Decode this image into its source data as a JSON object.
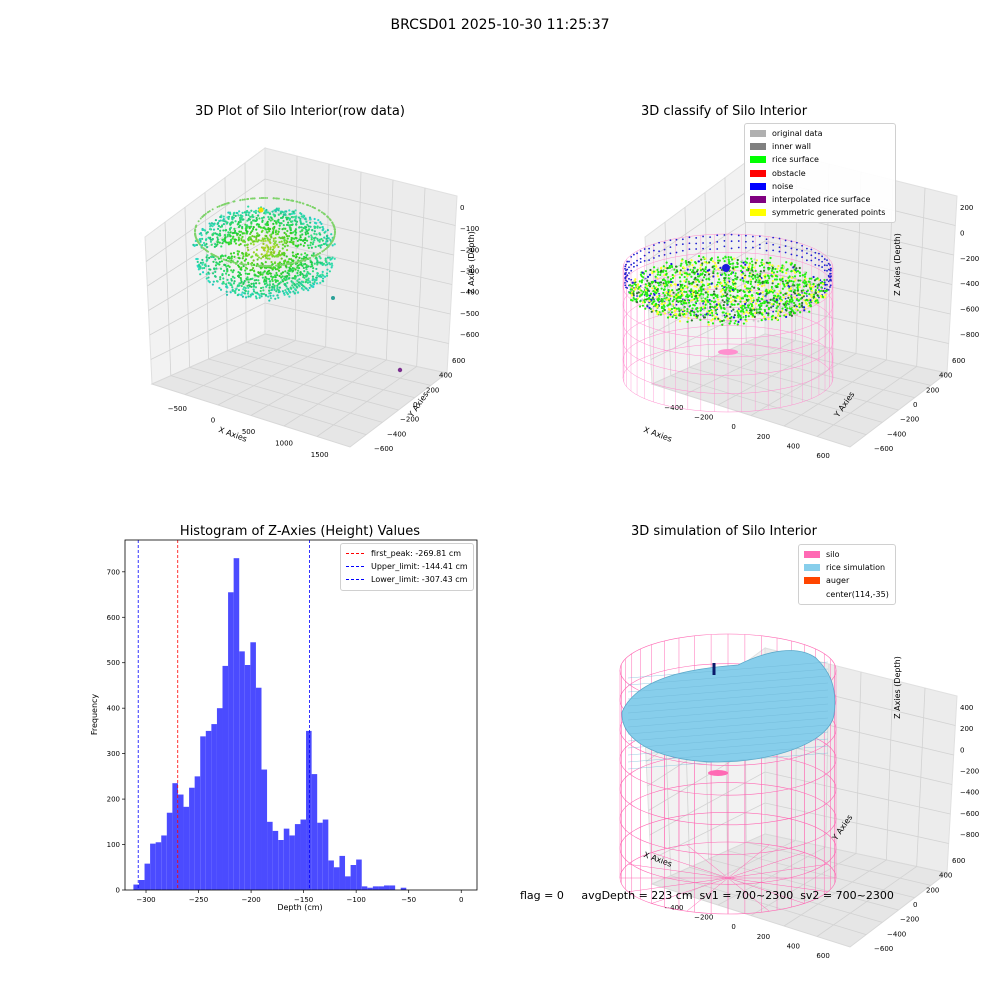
{
  "figure": {
    "title": "BRCSD01 2025-10-30 11:25:37",
    "footer": "flag = 0     avgDepth = 223 cm  sv1 = 700~2300  sv2 = 700~2300"
  },
  "panels": {
    "raw": {
      "title": "3D Plot of Silo Interior(row data)",
      "xlabel": "X Axies",
      "ylabel": "Y Axies",
      "zlabel": "Z Axies (Depth)",
      "xticks": [
        "−500",
        "0",
        "500",
        "1000",
        "1500"
      ],
      "yticks": [
        "600",
        "400",
        "200",
        "0",
        "−200",
        "−400",
        "−600"
      ],
      "zticks": [
        "0",
        "−100",
        "−200",
        "−300",
        "−400",
        "−500",
        "−600"
      ]
    },
    "classify": {
      "title": "3D classify of Silo Interior",
      "xlabel": "X Axies",
      "ylabel": "Y Axies",
      "zlabel": "Z Axies (Depth)",
      "xticks": [
        "−400",
        "−200",
        "0",
        "200",
        "400",
        "600"
      ],
      "yticks": [
        "600",
        "400",
        "200",
        "0",
        "−200",
        "−400",
        "−600"
      ],
      "zticks": [
        "200",
        "0",
        "−200",
        "−400",
        "−600",
        "−800"
      ],
      "legend": [
        {
          "label": "original data",
          "color": "#b0b0b0"
        },
        {
          "label": "inner wall",
          "color": "#808080"
        },
        {
          "label": "rice surface",
          "color": "#00ff00"
        },
        {
          "label": "obstacle",
          "color": "#ff0000"
        },
        {
          "label": "noise",
          "color": "#0000ff"
        },
        {
          "label": "interpolated rice surface",
          "color": "#800080"
        },
        {
          "label": "symmetric generated points",
          "color": "#ffff00"
        }
      ]
    },
    "simulation": {
      "title": "3D simulation of Silo Interior",
      "xlabel": "X Axies",
      "ylabel": "Y Axies",
      "zlabel": "Z Axies (Depth)",
      "xticks": [
        "−400",
        "−200",
        "0",
        "200",
        "400",
        "600"
      ],
      "yticks": [
        "600",
        "400",
        "200",
        "0",
        "−200",
        "−400",
        "−600"
      ],
      "zticks": [
        "400",
        "200",
        "0",
        "−200",
        "−400",
        "−600",
        "−800"
      ],
      "legend": [
        {
          "label": "silo",
          "color": "#ff69b4"
        },
        {
          "label": "rice simulation",
          "color": "#87ceeb"
        },
        {
          "label": "auger",
          "color": "#ff4500"
        },
        {
          "label": "center(114,-35)",
          "color": ""
        }
      ]
    }
  },
  "chart_data": [
    {
      "type": "histogram",
      "title": "Histogram of Z-Axies (Height) Values",
      "xlabel": "Depth (cm)",
      "ylabel": "Frequency",
      "xlim": [
        -320,
        15
      ],
      "ylim": [
        0,
        770
      ],
      "xticks": [
        -300,
        -250,
        -200,
        -150,
        -100,
        -50,
        0
      ],
      "yticks": [
        0,
        100,
        200,
        300,
        400,
        500,
        600,
        700
      ],
      "bar_color": "#4b4bff",
      "bins": {
        "start": -312,
        "width": 5.3,
        "counts": [
          12,
          22,
          58,
          102,
          105,
          120,
          170,
          235,
          210,
          183,
          225,
          250,
          338,
          350,
          365,
          400,
          493,
          655,
          730,
          525,
          495,
          545,
          445,
          265,
          150,
          130,
          110,
          135,
          120,
          145,
          155,
          350,
          255,
          148,
          155,
          65,
          50,
          75,
          30,
          55,
          67,
          8,
          5,
          8,
          8,
          10,
          10,
          0,
          5
        ]
      },
      "vlines": [
        {
          "name": "first_peak: -269.81 cm",
          "x": -269.81,
          "color": "#ff0000"
        },
        {
          "name": "Upper_limit: -144.41 cm",
          "x": -144.41,
          "color": "#0000ff"
        },
        {
          "name": "Lower_limit: -307.43 cm",
          "x": -307.43,
          "color": "#0000ff"
        }
      ],
      "legend_position": "upper right"
    }
  ]
}
